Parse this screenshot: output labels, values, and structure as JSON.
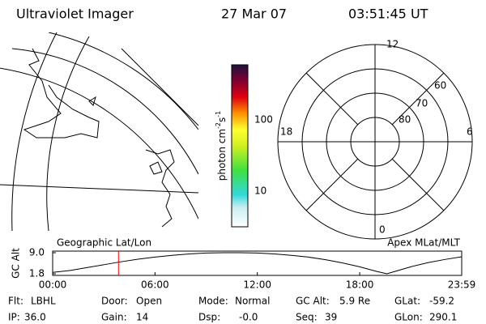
{
  "header": {
    "title": "Ultraviolet Imager",
    "date": "27 Mar 07",
    "time": "03:51:45 UT"
  },
  "map": {
    "label": "Geographic Lat/Lon"
  },
  "colorbar": {
    "unit": "photon cm",
    "exp1": "-2",
    "unit2": "s",
    "exp2": "-1",
    "ticks": [
      "100",
      "10"
    ]
  },
  "polar": {
    "label": "Apex MLat/MLT",
    "mlt": [
      "12",
      "18",
      "6",
      "0"
    ],
    "mlat": [
      "60",
      "70",
      "80"
    ]
  },
  "altitude_plot": {
    "ylabel": "GC Alt",
    "ylim": [
      1.8,
      9.0
    ],
    "yticks": [
      {
        "value": 9.0,
        "label": "9.0"
      },
      {
        "value": 1.8,
        "label": "1.8"
      }
    ],
    "xlim": [
      0,
      23.98
    ],
    "xticks": [
      {
        "value": 0,
        "label": "00:00"
      },
      {
        "value": 6,
        "label": "06:00"
      },
      {
        "value": 12,
        "label": "12:00"
      },
      {
        "value": 18,
        "label": "18:00"
      },
      {
        "value": 23.98,
        "label": "23:59"
      }
    ],
    "x": [
      0,
      1,
      2,
      3,
      4,
      5,
      6,
      7,
      8,
      9,
      10,
      11,
      12,
      13,
      14,
      15,
      16,
      17,
      18,
      19,
      19.6,
      20,
      21,
      22,
      23,
      23.98
    ],
    "values": [
      2.3,
      2.9,
      3.9,
      4.9,
      5.9,
      6.8,
      7.5,
      8.1,
      8.6,
      8.9,
      9.0,
      9.0,
      8.9,
      8.6,
      8.1,
      7.5,
      6.6,
      5.5,
      4.2,
      2.6,
      1.8,
      2.5,
      4.2,
      5.6,
      6.7,
      7.6
    ],
    "marker_x": 3.86,
    "line_color": "#000000",
    "marker_color": "#ff0000"
  },
  "status": [
    [
      {
        "label": "Flt:",
        "value": "LBHL"
      },
      {
        "label": "Door:",
        "value": "Open"
      },
      {
        "label": "Mode:",
        "value": "Normal"
      },
      {
        "label": "GC Alt:",
        "value": "5.9 Re"
      },
      {
        "label": "GLat:",
        "value": "-59.2"
      }
    ],
    [
      {
        "label": "IP:",
        "value": "36.0"
      },
      {
        "label": "Gain:",
        "value": "14"
      },
      {
        "label": "Dsp:",
        "value": "-0.0"
      },
      {
        "label": "Seq:",
        "value": "39"
      },
      {
        "label": "GLon:",
        "value": "290.1"
      }
    ]
  ]
}
